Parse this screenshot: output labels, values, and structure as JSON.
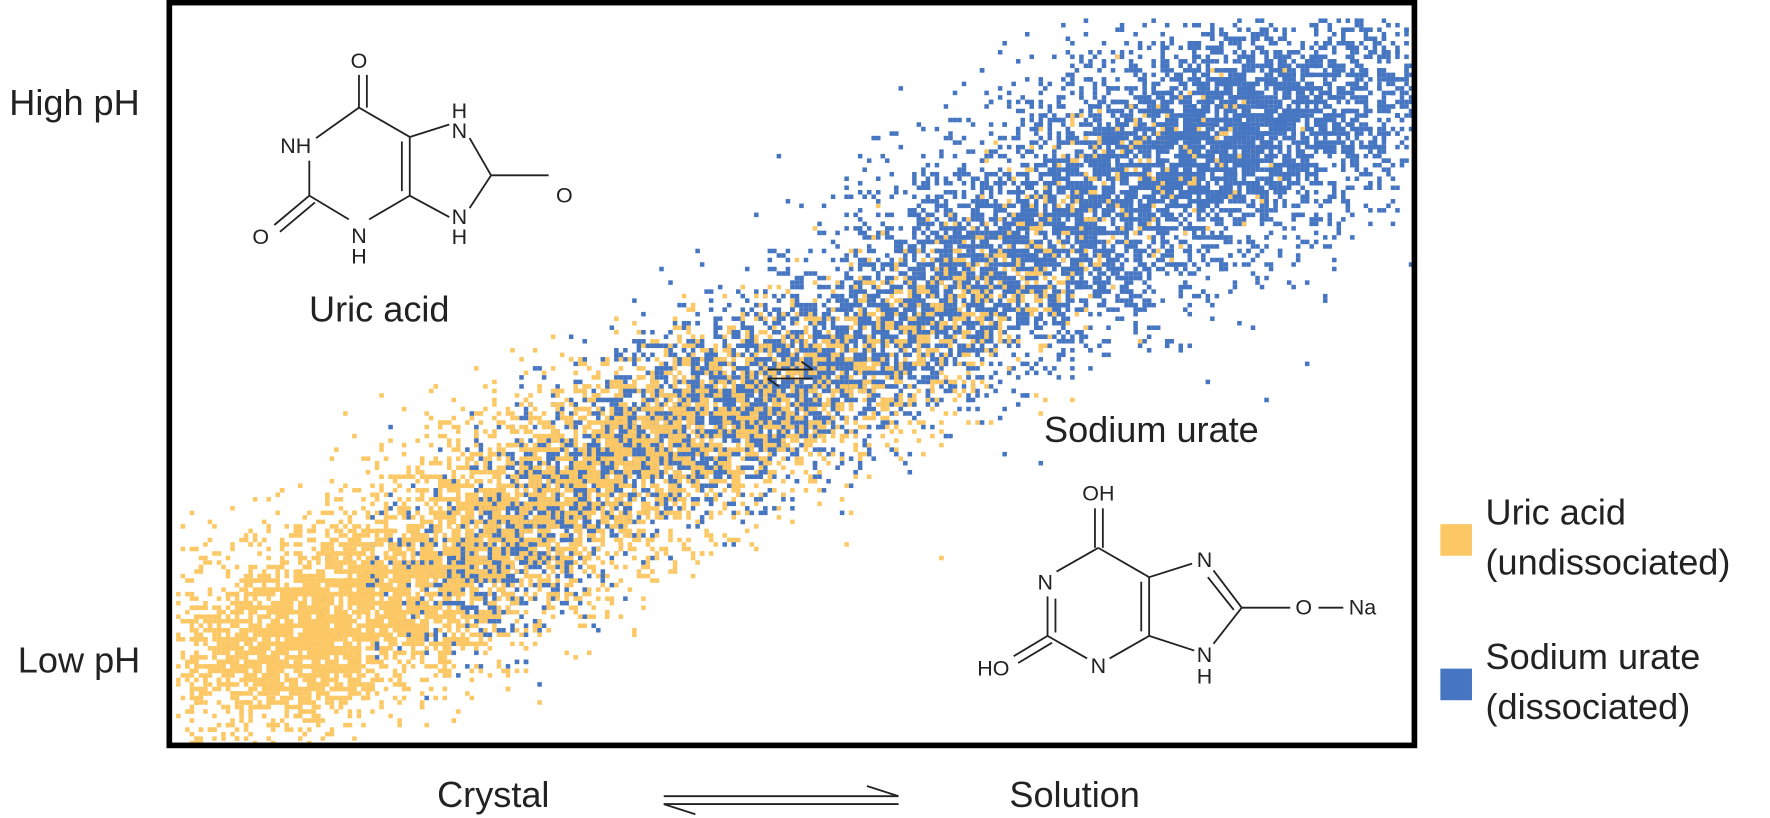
{
  "axis_labels": {
    "high": "High pH",
    "low": "Low pH"
  },
  "compounds": [
    {
      "name": "Uric acid",
      "atoms": [
        "O",
        "NH",
        "H",
        "N",
        "O",
        "O",
        "N",
        "H",
        "N",
        "H"
      ]
    },
    {
      "name": "Sodium urate",
      "atoms": [
        "OH",
        "N",
        "N",
        "O",
        "Na",
        "HO",
        "N",
        "N",
        "H"
      ]
    }
  ],
  "process": {
    "left": "Crystal",
    "right": "Solution"
  },
  "legend": [
    {
      "label": [
        "Uric acid",
        "(undissociated)"
      ],
      "color": "#fcc865"
    },
    {
      "label": [
        "Sodium urate",
        "(dissociated)"
      ],
      "color": "#4676c2"
    }
  ]
}
